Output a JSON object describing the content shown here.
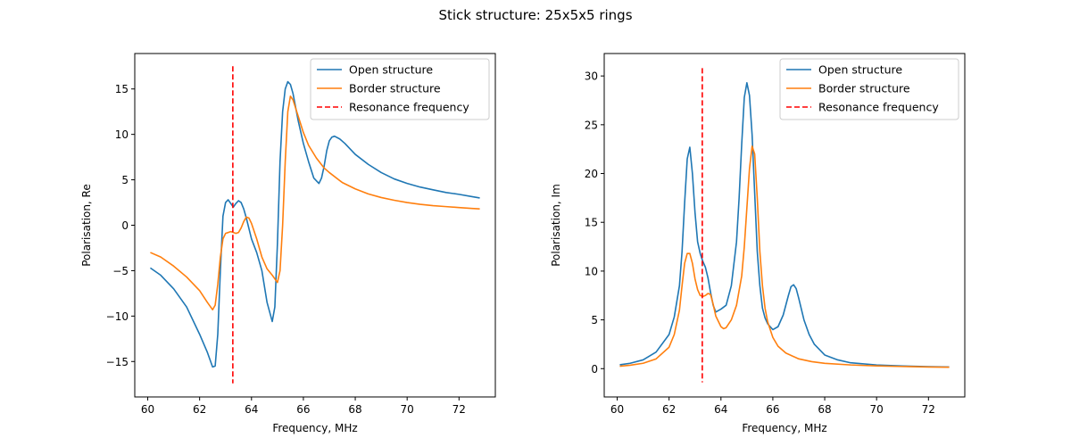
{
  "figure_title": "Stick structure: 25x5x5 rings",
  "colors": {
    "open": "#1f77b4",
    "border": "#ff7f0e",
    "resonance": "#ff0000"
  },
  "chart_data": [
    {
      "type": "line",
      "xlabel": "Frequency, MHz",
      "ylabel": "Polarisation, Re",
      "xlim": [
        59.5,
        73.4
      ],
      "ylim": [
        -18.9,
        18.9
      ],
      "xticks": [
        60,
        62,
        64,
        66,
        68,
        70,
        72
      ],
      "yticks": [
        -15,
        -10,
        -5,
        0,
        5,
        10,
        15
      ],
      "legend": {
        "position": "top-right",
        "entries": [
          "Open structure",
          "Border structure",
          "Resonance frequency"
        ]
      },
      "vline": {
        "x": 63.28,
        "ymin": -17.4,
        "ymax": 17.5,
        "style": "dashed"
      },
      "series": [
        {
          "name": "Open structure",
          "x": [
            60.1,
            60.5,
            61.0,
            61.5,
            62.0,
            62.3,
            62.5,
            62.6,
            62.7,
            62.8,
            62.9,
            63.0,
            63.1,
            63.2,
            63.3,
            63.4,
            63.5,
            63.6,
            63.7,
            63.8,
            64.0,
            64.2,
            64.4,
            64.6,
            64.8,
            64.9,
            65.0,
            65.1,
            65.2,
            65.3,
            65.4,
            65.5,
            65.6,
            65.8,
            66.0,
            66.2,
            66.4,
            66.6,
            66.7,
            66.8,
            66.9,
            67.0,
            67.1,
            67.2,
            67.4,
            67.6,
            67.8,
            68.0,
            68.5,
            69.0,
            69.5,
            70.0,
            70.5,
            71.0,
            71.5,
            72.0,
            72.5,
            72.8
          ],
          "y": [
            -4.7,
            -5.5,
            -7.0,
            -9.0,
            -12.0,
            -14.0,
            -15.6,
            -15.5,
            -12.0,
            -5.0,
            1.0,
            2.5,
            2.8,
            2.4,
            2.0,
            2.4,
            2.7,
            2.5,
            1.8,
            0.8,
            -1.5,
            -3.0,
            -5.0,
            -8.5,
            -10.6,
            -9.0,
            -2.0,
            7.0,
            12.5,
            15.0,
            15.8,
            15.5,
            14.5,
            11.5,
            9.0,
            7.0,
            5.2,
            4.6,
            5.2,
            6.5,
            8.2,
            9.3,
            9.7,
            9.8,
            9.5,
            9.0,
            8.4,
            7.8,
            6.7,
            5.8,
            5.1,
            4.6,
            4.2,
            3.9,
            3.6,
            3.4,
            3.15,
            3.0
          ]
        },
        {
          "name": "Border structure",
          "x": [
            60.1,
            60.5,
            61.0,
            61.5,
            62.0,
            62.3,
            62.5,
            62.6,
            62.7,
            62.8,
            62.9,
            63.0,
            63.2,
            63.4,
            63.5,
            63.6,
            63.7,
            63.8,
            63.9,
            64.0,
            64.2,
            64.4,
            64.6,
            64.8,
            65.0,
            65.1,
            65.2,
            65.3,
            65.4,
            65.5,
            65.6,
            65.8,
            66.0,
            66.2,
            66.5,
            66.8,
            67.0,
            67.5,
            68.0,
            68.5,
            69.0,
            69.5,
            70.0,
            70.5,
            71.0,
            71.5,
            72.0,
            72.5,
            72.8
          ],
          "y": [
            -3.0,
            -3.5,
            -4.5,
            -5.7,
            -7.2,
            -8.5,
            -9.3,
            -8.8,
            -6.5,
            -3.5,
            -1.5,
            -0.9,
            -0.7,
            -0.9,
            -0.8,
            -0.3,
            0.4,
            0.9,
            0.8,
            0.2,
            -1.5,
            -3.5,
            -4.8,
            -5.5,
            -6.3,
            -5.0,
            0.0,
            7.0,
            12.5,
            14.2,
            13.8,
            12.0,
            10.2,
            8.8,
            7.4,
            6.3,
            5.8,
            4.7,
            4.0,
            3.45,
            3.05,
            2.75,
            2.5,
            2.3,
            2.15,
            2.05,
            1.95,
            1.85,
            1.8
          ]
        }
      ]
    },
    {
      "type": "line",
      "xlabel": "Frequency, MHz",
      "ylabel": "Polarisation, Im",
      "xlim": [
        59.5,
        73.4
      ],
      "ylim": [
        -2.9,
        32.3
      ],
      "xticks": [
        60,
        62,
        64,
        66,
        68,
        70,
        72
      ],
      "yticks": [
        0,
        5,
        10,
        15,
        20,
        25,
        30
      ],
      "legend": {
        "position": "top-right",
        "entries": [
          "Open structure",
          "Border structure",
          "Resonance frequency"
        ]
      },
      "vline": {
        "x": 63.28,
        "ymin": -1.4,
        "ymax": 30.8,
        "style": "dashed"
      },
      "series": [
        {
          "name": "Open structure",
          "x": [
            60.1,
            60.5,
            61.0,
            61.5,
            62.0,
            62.2,
            62.4,
            62.5,
            62.6,
            62.7,
            62.8,
            62.9,
            63.0,
            63.1,
            63.2,
            63.3,
            63.4,
            63.5,
            63.6,
            63.7,
            63.8,
            64.0,
            64.2,
            64.4,
            64.6,
            64.7,
            64.8,
            64.9,
            65.0,
            65.1,
            65.2,
            65.3,
            65.4,
            65.5,
            65.6,
            65.7,
            65.8,
            66.0,
            66.2,
            66.4,
            66.6,
            66.7,
            66.8,
            66.9,
            67.0,
            67.2,
            67.4,
            67.6,
            68.0,
            68.5,
            69.0,
            70.0,
            71.0,
            72.0,
            72.8
          ],
          "y": [
            0.4,
            0.55,
            0.9,
            1.7,
            3.5,
            5.3,
            8.5,
            12.0,
            17.0,
            21.5,
            22.7,
            20.0,
            16.0,
            13.0,
            11.8,
            11.0,
            10.4,
            9.3,
            7.8,
            6.5,
            5.8,
            6.1,
            6.5,
            8.5,
            13.0,
            17.5,
            23.0,
            27.8,
            29.3,
            28.0,
            24.0,
            18.0,
            12.0,
            8.5,
            6.2,
            5.2,
            4.6,
            4.0,
            4.3,
            5.5,
            7.5,
            8.4,
            8.6,
            8.2,
            7.2,
            5.0,
            3.5,
            2.5,
            1.4,
            0.9,
            0.6,
            0.38,
            0.27,
            0.2,
            0.17
          ]
        },
        {
          "name": "Border structure",
          "x": [
            60.1,
            60.5,
            61.0,
            61.5,
            62.0,
            62.2,
            62.4,
            62.5,
            62.6,
            62.7,
            62.8,
            62.9,
            63.0,
            63.1,
            63.2,
            63.3,
            63.4,
            63.5,
            63.6,
            63.7,
            63.8,
            64.0,
            64.1,
            64.2,
            64.4,
            64.6,
            64.8,
            64.9,
            65.0,
            65.1,
            65.2,
            65.3,
            65.4,
            65.5,
            65.6,
            65.7,
            65.8,
            66.0,
            66.2,
            66.5,
            67.0,
            67.5,
            68.0,
            69.0,
            70.0,
            71.0,
            72.0,
            72.8
          ],
          "y": [
            0.25,
            0.35,
            0.55,
            1.0,
            2.2,
            3.5,
            6.0,
            8.5,
            10.8,
            11.8,
            11.8,
            10.8,
            9.2,
            8.1,
            7.5,
            7.4,
            7.5,
            7.7,
            7.6,
            6.6,
            5.4,
            4.3,
            4.1,
            4.2,
            5.0,
            6.5,
            9.5,
            12.5,
            16.5,
            20.5,
            22.8,
            22.0,
            17.5,
            12.0,
            8.5,
            6.2,
            4.8,
            3.2,
            2.3,
            1.6,
            1.0,
            0.72,
            0.55,
            0.38,
            0.28,
            0.22,
            0.17,
            0.15
          ]
        }
      ]
    }
  ]
}
